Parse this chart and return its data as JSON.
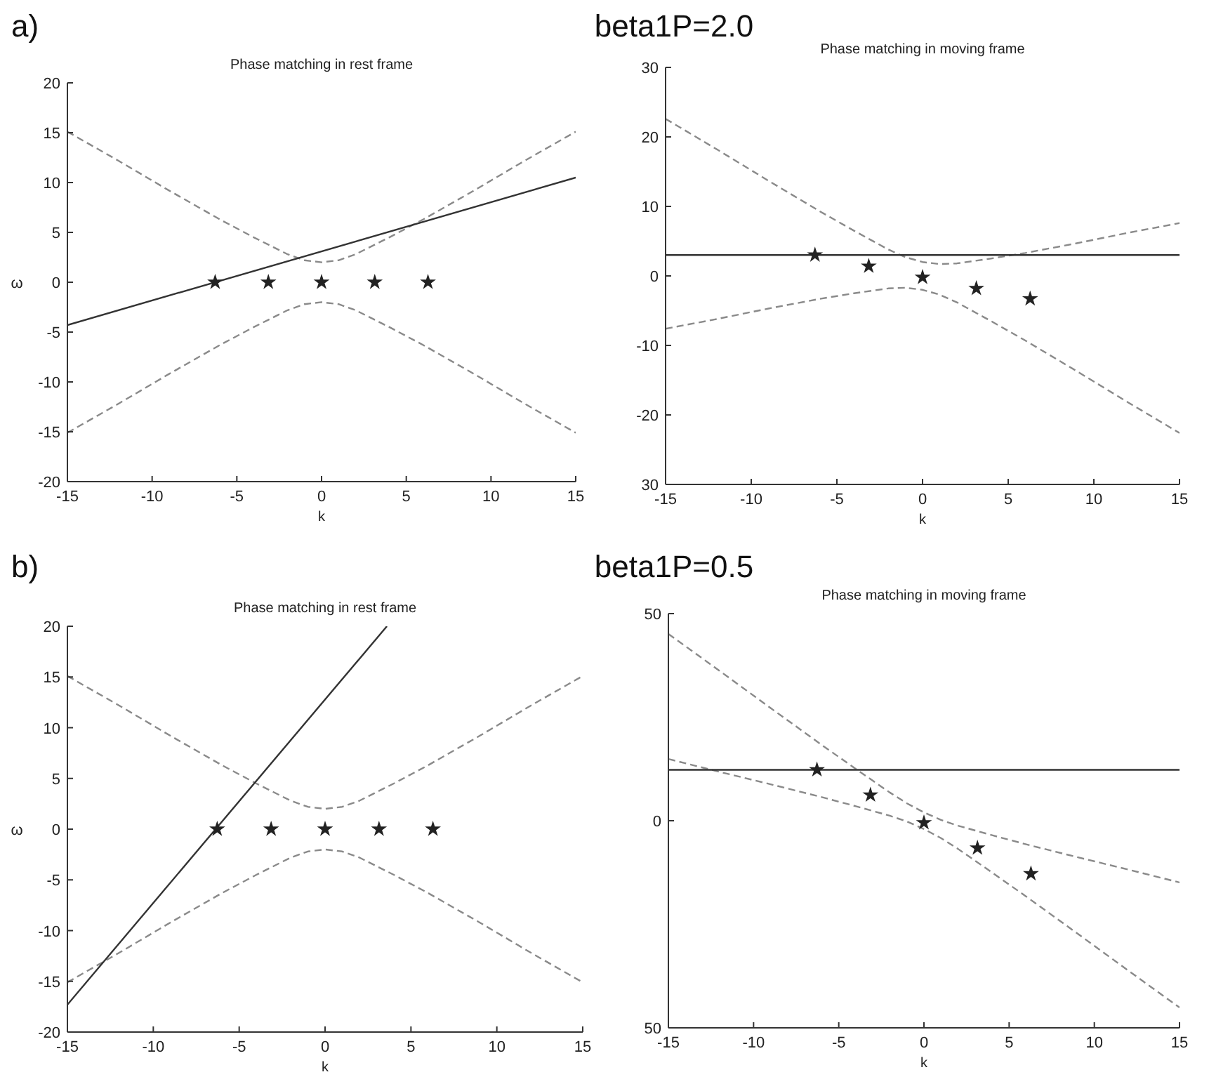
{
  "chart_data": [
    {
      "type": "line",
      "title": "Phase matching in rest frame",
      "xlabel": "k",
      "ylabel": "ω",
      "annotations": [
        "a)",
        "beta1P=2.0"
      ],
      "xlim": [
        -15,
        15
      ],
      "ylim": [
        -20,
        20
      ],
      "xticks": [
        -15,
        -10,
        -5,
        0,
        5,
        10,
        15
      ],
      "yticks": [
        -20,
        -15,
        -10,
        -5,
        0,
        5,
        10,
        15,
        20
      ],
      "series": [
        {
          "color": "#8a8a8a",
          "line_style": "dashed",
          "x": [
            -15,
            -12,
            -9,
            -6,
            -4,
            -2,
            -1,
            0,
            1,
            2,
            4,
            6,
            9,
            12,
            15
          ],
          "values": [
            15.1,
            12.2,
            9.2,
            6.3,
            4.5,
            2.8,
            2.2,
            2,
            2.2,
            2.8,
            4.5,
            6.3,
            9.2,
            12.2,
            15.1
          ]
        },
        {
          "color": "#8a8a8a",
          "line_style": "dashed",
          "x": [
            -15,
            -12,
            -9,
            -6,
            -4,
            -2,
            -1,
            0,
            1,
            2,
            4,
            6,
            9,
            12,
            15
          ],
          "values": [
            -15.1,
            -12.2,
            -9.2,
            -6.3,
            -4.5,
            -2.8,
            -2.2,
            -2,
            -2.2,
            -2.8,
            -4.5,
            -6.3,
            -9.2,
            -12.2,
            -15.1
          ]
        },
        {
          "color": "#333333",
          "line_style": "solid",
          "x": [
            -15,
            15
          ],
          "values": [
            -4.3,
            10.5
          ]
        },
        {
          "type": "scatter",
          "color": "#222222",
          "marker": "star",
          "x": [
            -6.28,
            -3.14,
            0,
            3.14,
            6.28
          ],
          "values": [
            0,
            0,
            0,
            0,
            0
          ]
        }
      ]
    },
    {
      "type": "line",
      "title": "Phase matching in moving frame",
      "xlabel": "k",
      "xlim": [
        -15,
        15
      ],
      "ylim": [
        -30,
        30
      ],
      "xticks": [
        -15,
        -10,
        -5,
        0,
        5,
        10,
        15
      ],
      "yticks": [
        {
          "value": -30,
          "label": "30"
        },
        -20,
        -10,
        0,
        10,
        20,
        30
      ],
      "series": [
        {
          "color": "#8a8a8a",
          "line_style": "dashed",
          "x": [
            -15,
            -12,
            -9,
            -6,
            -4,
            -2,
            -1,
            0,
            1,
            2,
            4,
            6,
            9,
            12,
            15
          ],
          "values": [
            22.6,
            18.2,
            13.7,
            9.3,
            6.5,
            3.8,
            2.7,
            2,
            1.7,
            1.8,
            2.5,
            3.3,
            4.7,
            6.2,
            7.6
          ]
        },
        {
          "color": "#8a8a8a",
          "line_style": "dashed",
          "x": [
            -15,
            -12,
            -9,
            -6,
            -4,
            -2,
            -1,
            0,
            1,
            2,
            4,
            6,
            9,
            12,
            15
          ],
          "values": [
            -7.6,
            -6.2,
            -4.7,
            -3.3,
            -2.5,
            -1.8,
            -1.7,
            -2,
            -2.7,
            -3.8,
            -6.5,
            -9.3,
            -13.7,
            -18.2,
            -22.6
          ]
        },
        {
          "color": "#333333",
          "line_style": "solid",
          "x": [
            -15,
            15
          ],
          "values": [
            3,
            3
          ]
        },
        {
          "type": "scatter",
          "color": "#222222",
          "marker": "star",
          "x": [
            -6.28,
            -3.14,
            0,
            3.14,
            6.28
          ],
          "values": [
            3,
            1.4,
            -0.2,
            -1.8,
            -3.3
          ]
        }
      ]
    },
    {
      "type": "line",
      "title": "Phase matching in rest frame",
      "xlabel": "k",
      "ylabel": "ω",
      "annotations": [
        "b)",
        "beta1P=0.5"
      ],
      "xlim": [
        -15,
        15
      ],
      "ylim": [
        -20,
        20
      ],
      "xticks": [
        -15,
        -10,
        -5,
        0,
        5,
        10,
        15
      ],
      "yticks": [
        -20,
        -15,
        -10,
        -5,
        0,
        5,
        10,
        15,
        20
      ],
      "series": [
        {
          "color": "#8a8a8a",
          "line_style": "dashed",
          "x": [
            -15,
            -12,
            -9,
            -6,
            -4,
            -2,
            -1,
            0,
            1,
            2,
            4,
            6,
            9,
            12,
            15
          ],
          "values": [
            15.1,
            12.2,
            9.2,
            6.3,
            4.5,
            2.8,
            2.2,
            2,
            2.2,
            2.8,
            4.5,
            6.3,
            9.2,
            12.2,
            15.1
          ]
        },
        {
          "color": "#8a8a8a",
          "line_style": "dashed",
          "x": [
            -15,
            -12,
            -9,
            -6,
            -4,
            -2,
            -1,
            0,
            1,
            2,
            4,
            6,
            9,
            12,
            15
          ],
          "values": [
            -15.1,
            -12.2,
            -9.2,
            -6.3,
            -4.5,
            -2.8,
            -2.2,
            -2,
            -2.2,
            -2.8,
            -4.5,
            -6.3,
            -9.2,
            -12.2,
            -15.1
          ]
        },
        {
          "color": "#333333",
          "line_style": "solid",
          "x": [
            -15,
            3.6
          ],
          "values": [
            -17.3,
            20
          ]
        },
        {
          "type": "scatter",
          "color": "#222222",
          "marker": "star",
          "x": [
            -6.28,
            -3.14,
            0,
            3.14,
            6.28
          ],
          "values": [
            0,
            0,
            0,
            0,
            0
          ]
        }
      ]
    },
    {
      "type": "line",
      "title": "Phase matching in moving frame",
      "xlabel": "k",
      "xlim": [
        -15,
        15
      ],
      "ylim": [
        -50,
        50
      ],
      "xticks": [
        -15,
        -10,
        -5,
        0,
        5,
        10,
        15
      ],
      "yticks": [
        {
          "value": -50,
          "label": "50"
        },
        0,
        50
      ],
      "series": [
        {
          "color": "#8a8a8a",
          "line_style": "dashed",
          "x": [
            -15,
            -12,
            -9,
            -6,
            -4,
            -2,
            -1,
            0,
            1,
            2,
            4,
            6,
            9,
            12,
            15
          ],
          "values": [
            45.1,
            36.2,
            27.2,
            18.3,
            12.5,
            6.8,
            4.2,
            2,
            0.2,
            -1.2,
            -3.5,
            -5.7,
            -8.8,
            -11.8,
            -14.9
          ]
        },
        {
          "color": "#8a8a8a",
          "line_style": "dashed",
          "x": [
            -15,
            -12,
            -9,
            -6,
            -4,
            -2,
            -1,
            0,
            1,
            2,
            4,
            6,
            9,
            12,
            15
          ],
          "values": [
            14.9,
            11.8,
            8.8,
            5.7,
            3.5,
            1.2,
            -0.2,
            -2,
            -4.2,
            -6.8,
            -12.5,
            -18.3,
            -27.2,
            -36.2,
            -45.1
          ]
        },
        {
          "color": "#333333",
          "line_style": "solid",
          "x": [
            -15,
            15
          ],
          "values": [
            12.3,
            12.3
          ]
        },
        {
          "type": "scatter",
          "color": "#222222",
          "marker": "star",
          "x": [
            -6.28,
            -3.14,
            0,
            3.14,
            6.28
          ],
          "values": [
            12.3,
            6.2,
            -0.5,
            -6.6,
            -12.8
          ]
        }
      ]
    }
  ]
}
